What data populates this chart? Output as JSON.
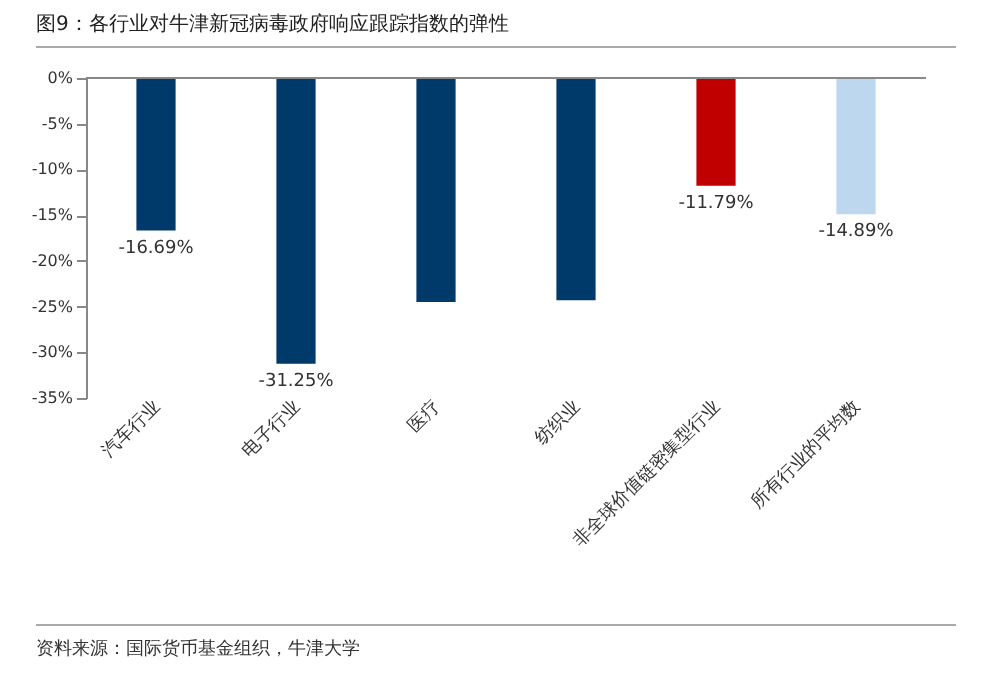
{
  "chart_data": {
    "type": "bar",
    "title": "图9：各行业对牛津新冠病毒政府响应跟踪指数的弹性",
    "categories": [
      "汽车行业",
      "电子行业",
      "医疗",
      "纺织业",
      "非全球价值链密集型行业",
      "所有行业的平均数"
    ],
    "values": [
      -16.69,
      -31.25,
      -24.5,
      -24.3,
      -11.79,
      -14.89
    ],
    "colors": [
      "#003a6b",
      "#003a6b",
      "#003a6b",
      "#003a6b",
      "#c00000",
      "#bdd7ee"
    ],
    "value_labels": [
      "-16.69%",
      "-31.25%",
      null,
      null,
      "-11.79%",
      "-14.89%"
    ],
    "ylim": [
      -35,
      0
    ],
    "yticks": [
      {
        "value": -35,
        "label": "-35%"
      },
      {
        "value": -30,
        "label": "-30%"
      },
      {
        "value": -25,
        "label": "-25%"
      },
      {
        "value": -20,
        "label": "-20%"
      },
      {
        "value": -15,
        "label": "-15%"
      },
      {
        "value": -10,
        "label": "-10%"
      },
      {
        "value": -5,
        "label": "-5%"
      },
      {
        "value": 0,
        "label": "0%"
      }
    ],
    "annotations": [
      "资料来源：国际货币基金组织，牛津大学"
    ]
  }
}
